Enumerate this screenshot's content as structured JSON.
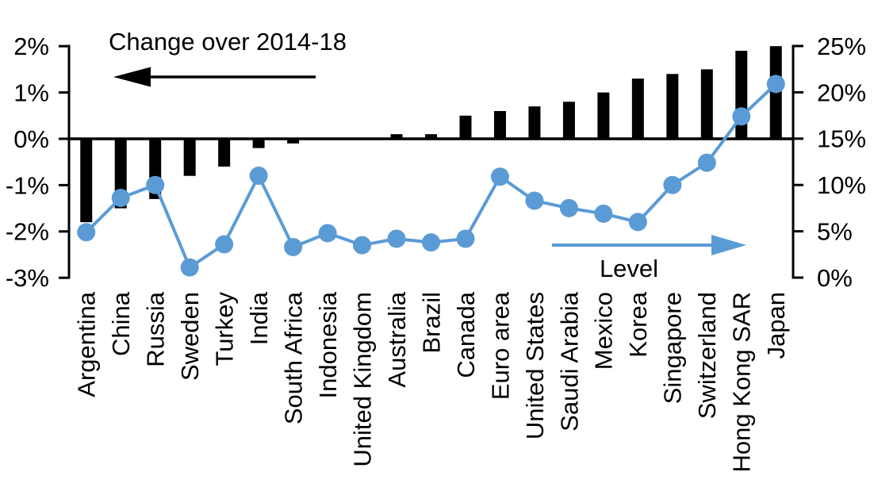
{
  "chart_data": {
    "type": "combo",
    "title": "",
    "categories": [
      "Argentina",
      "China",
      "Russia",
      "Sweden",
      "Turkey",
      "India",
      "South Africa",
      "Indonesia",
      "United Kingdom",
      "Australia",
      "Brazil",
      "Canada",
      "Euro area",
      "United States",
      "Saudi Arabia",
      "Mexico",
      "Korea",
      "Singapore",
      "Switzerland",
      "Hong Kong SAR",
      "Japan"
    ],
    "series": [
      {
        "name": "Change over 2014-18",
        "type": "bar",
        "axis": "left",
        "unit": "%",
        "values": [
          -1.8,
          -1.5,
          -1.3,
          -0.8,
          -0.6,
          -0.2,
          -0.1,
          0,
          0,
          0.1,
          0.1,
          0.5,
          0.6,
          0.7,
          0.8,
          1.0,
          1.3,
          1.4,
          1.5,
          1.9,
          2.0
        ]
      },
      {
        "name": "Level",
        "type": "line",
        "axis": "right",
        "unit": "%",
        "values": [
          4.9,
          8.6,
          10.0,
          1.1,
          3.6,
          11.0,
          3.3,
          4.8,
          3.5,
          4.2,
          3.8,
          4.2,
          10.9,
          8.3,
          7.5,
          6.9,
          6.0,
          10.0,
          12.4,
          17.4,
          20.9
        ]
      }
    ],
    "left_axis": {
      "tick_labels": [
        "2%",
        "1%",
        "0%",
        "-1%",
        "-2%",
        "-3%"
      ],
      "tick_values": [
        2,
        1,
        0,
        -1,
        -2,
        -3
      ],
      "min": -3,
      "max": 2
    },
    "right_axis": {
      "tick_labels": [
        "25%",
        "20%",
        "15%",
        "10%",
        "5%",
        "0%"
      ],
      "tick_values": [
        25,
        20,
        15,
        10,
        5,
        0
      ],
      "min": 0,
      "max": 25
    },
    "annotations": {
      "left_arrow_label": "Change over 2014-18",
      "right_arrow_label": "Level"
    },
    "colors": {
      "bar": "#000000",
      "line": "#5B9BD5",
      "text": "#000000",
      "background": "#FFFFFF"
    },
    "grid": false,
    "legend_position": "in-plot annotations with arrows"
  }
}
